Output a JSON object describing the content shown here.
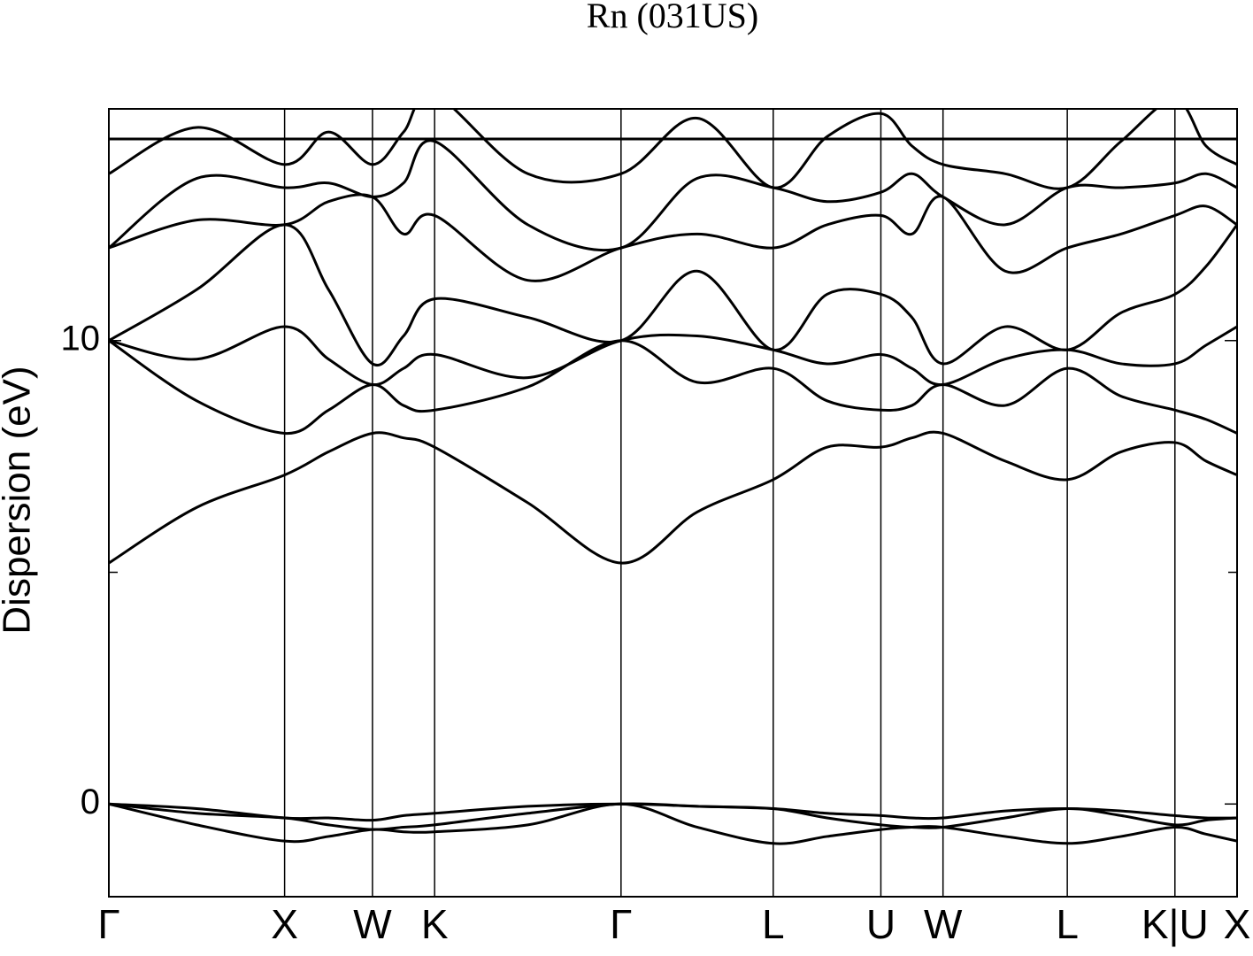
{
  "chart_data": {
    "type": "line",
    "title": "Rn (031US)",
    "y_label": "Dispersion (eV)",
    "x": [
      0,
      0.5,
      1,
      1.25,
      1.5,
      1.6768,
      1.8536,
      2.3839,
      2.9142,
      3.3472,
      3.7802,
      4.0864,
      4.3926,
      4.5694,
      4.7462,
      5.0998,
      5.4533,
      5.7595,
      6.0657,
      6.2425,
      6.4193
    ],
    "xlim": [
      0,
      6.4193
    ],
    "xticks": [
      {
        "value": 0,
        "label": "Γ"
      },
      {
        "value": 1,
        "label": "X"
      },
      {
        "value": 1.5,
        "label": "W"
      },
      {
        "value": 1.8536,
        "label": "K"
      },
      {
        "value": 2.9142,
        "label": "Γ"
      },
      {
        "value": 3.7802,
        "label": "L"
      },
      {
        "value": 4.3926,
        "label": "U"
      },
      {
        "value": 4.7462,
        "label": "W"
      },
      {
        "value": 5.4533,
        "label": "L"
      },
      {
        "value": 6.0657,
        "label": "K|U"
      },
      {
        "value": 6.4193,
        "label": "X"
      }
    ],
    "ylim": [
      -2,
      15
    ],
    "yticks": [
      0,
      10
    ],
    "minor_yticks": [
      5
    ],
    "series": [
      {
        "color": "#000000",
        "values": [
          0,
          -0.45,
          -0.8,
          -0.7,
          -0.55,
          -0.6,
          -0.6,
          -0.45,
          0,
          -0.5,
          -0.85,
          -0.7,
          -0.55,
          -0.5,
          -0.5,
          -0.7,
          -0.85,
          -0.7,
          -0.5,
          -0.65,
          -0.8
        ]
      },
      {
        "color": "#000000",
        "values": [
          0,
          -0.2,
          -0.3,
          -0.45,
          -0.55,
          -0.5,
          -0.45,
          -0.2,
          0,
          -0.05,
          -0.1,
          -0.3,
          -0.45,
          -0.5,
          -0.5,
          -0.3,
          -0.1,
          -0.25,
          -0.45,
          -0.35,
          -0.3
        ]
      },
      {
        "color": "#000000",
        "values": [
          0,
          -0.1,
          -0.3,
          -0.3,
          -0.35,
          -0.25,
          -0.2,
          -0.05,
          0,
          -0.05,
          -0.1,
          -0.2,
          -0.25,
          -0.3,
          -0.3,
          -0.15,
          -0.1,
          -0.15,
          -0.25,
          -0.3,
          -0.3
        ]
      },
      {
        "color": "#000000",
        "values": [
          5.2,
          6.4,
          7.1,
          7.6,
          8.0,
          7.9,
          7.7,
          6.5,
          5.2,
          6.3,
          7.0,
          7.7,
          7.7,
          7.9,
          8.0,
          7.4,
          7.0,
          7.6,
          7.8,
          7.4,
          7.1
        ]
      },
      {
        "color": "#000000",
        "values": [
          10,
          8.7,
          8.0,
          8.5,
          9.05,
          8.6,
          8.5,
          9.0,
          10,
          9.1,
          9.4,
          8.7,
          8.5,
          8.6,
          9.05,
          8.6,
          9.4,
          8.8,
          8.5,
          8.3,
          8.0
        ]
      },
      {
        "color": "#000000",
        "values": [
          10,
          9.6,
          10.3,
          9.6,
          9.05,
          9.4,
          9.7,
          9.2,
          10,
          10.1,
          9.8,
          9.5,
          9.7,
          9.4,
          9.05,
          9.6,
          9.8,
          9.5,
          9.5,
          9.9,
          10.3
        ]
      },
      {
        "color": "#000000",
        "values": [
          10,
          11.1,
          12.5,
          11.1,
          9.5,
          10.1,
          10.9,
          10.5,
          10,
          11.5,
          9.8,
          11.0,
          11.0,
          10.5,
          9.5,
          10.3,
          9.8,
          10.6,
          11.0,
          11.6,
          12.5
        ]
      },
      {
        "color": "#000000",
        "values": [
          12.0,
          12.6,
          12.5,
          13.0,
          13.1,
          12.3,
          12.7,
          11.3,
          12.0,
          12.3,
          12.0,
          12.5,
          12.7,
          12.3,
          13.1,
          11.5,
          12.0,
          12.3,
          12.7,
          12.9,
          12.5
        ]
      },
      {
        "color": "#000000",
        "values": [
          12.0,
          13.5,
          13.3,
          13.4,
          13.1,
          13.4,
          14.3,
          12.5,
          12.0,
          13.5,
          13.3,
          13.0,
          13.2,
          13.6,
          13.1,
          12.5,
          13.3,
          13.3,
          13.4,
          13.6,
          13.3
        ]
      },
      {
        "color": "#000000",
        "values": [
          13.6,
          14.6,
          13.8,
          14.5,
          13.8,
          14.5,
          15.3,
          13.6,
          13.6,
          14.8,
          13.3,
          14.4,
          14.9,
          14.2,
          13.8,
          13.6,
          13.3,
          14.3,
          15.2,
          14.2,
          13.8
        ]
      },
      {
        "color": "#000000",
        "values": [
          14.35,
          14.35,
          14.35,
          14.35,
          14.35,
          14.35,
          14.35,
          14.35,
          14.35,
          14.35,
          14.35,
          14.35,
          14.35,
          14.35,
          14.35,
          14.35,
          14.35,
          14.35,
          14.35,
          14.35,
          14.35
        ]
      }
    ]
  }
}
